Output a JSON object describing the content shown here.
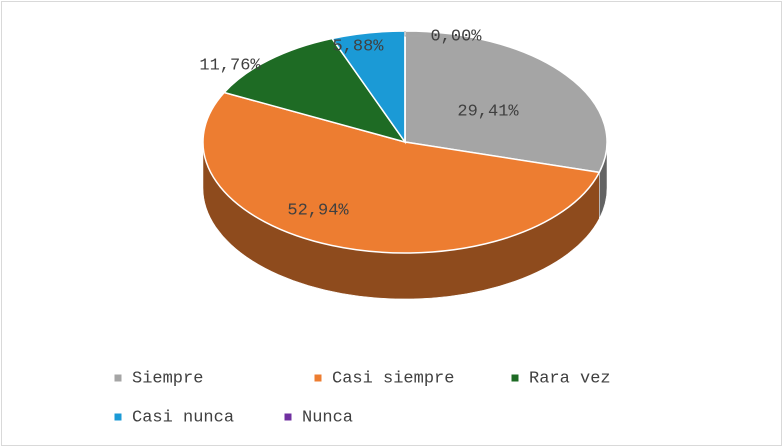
{
  "chart_data": {
    "type": "pie",
    "categories": [
      "Siempre",
      "Casi siempre",
      "Rara vez",
      "Casi nunca",
      "Nunca"
    ],
    "values": [
      29.41,
      52.94,
      11.76,
      5.88,
      0.0
    ],
    "value_labels": [
      "29,41%",
      "52,94%",
      "11,76%",
      "5,88%",
      "0,00%"
    ],
    "colors": [
      "#a5a5a5",
      "#ed7d31",
      "#1e6b24",
      "#1b9ad6",
      "#7030a0"
    ],
    "legend": "bottom"
  }
}
